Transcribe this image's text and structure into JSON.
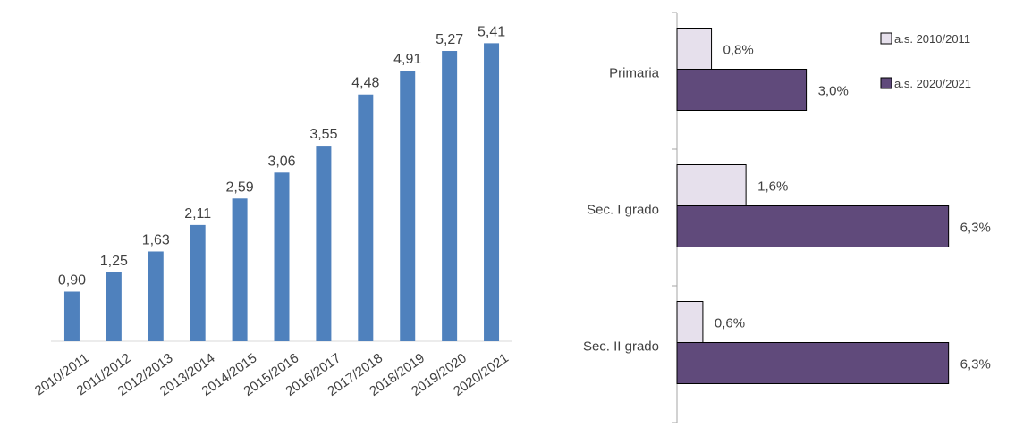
{
  "chart_data": [
    {
      "type": "bar",
      "categories": [
        "2010/2011",
        "2011/2012",
        "2012/2013",
        "2013/2014",
        "2014/2015",
        "2015/2016",
        "2016/2017",
        "2017/2018",
        "2018/2019",
        "2019/2020",
        "2020/2021"
      ],
      "values": [
        0.9,
        1.25,
        1.63,
        2.11,
        2.59,
        3.06,
        3.55,
        4.48,
        4.91,
        5.27,
        5.41
      ],
      "value_labels": [
        "0,90",
        "1,25",
        "1,63",
        "2,11",
        "2,59",
        "3,06",
        "3,55",
        "4,48",
        "4,91",
        "5,27",
        "5,41"
      ],
      "ylim": [
        0,
        6
      ],
      "grid": false,
      "color": "#4f81bd"
    },
    {
      "type": "bar",
      "orientation": "horizontal",
      "categories": [
        "Primaria",
        "Sec. I grado",
        "Sec. II grado"
      ],
      "series": [
        {
          "name": "a.s. 2010/2011",
          "values": [
            0.8,
            1.6,
            0.6
          ],
          "value_labels": [
            "0,8%",
            "1,6%",
            "0,6%"
          ],
          "color": "#e6e0ec"
        },
        {
          "name": "a.s. 2020/2021",
          "values": [
            3.0,
            6.3,
            6.3
          ],
          "value_labels": [
            "3,0%",
            "6,3%",
            "6,3%"
          ],
          "color": "#604a7b"
        }
      ],
      "xlim": [
        0,
        7
      ],
      "grid": false,
      "legend": "top-right"
    }
  ]
}
